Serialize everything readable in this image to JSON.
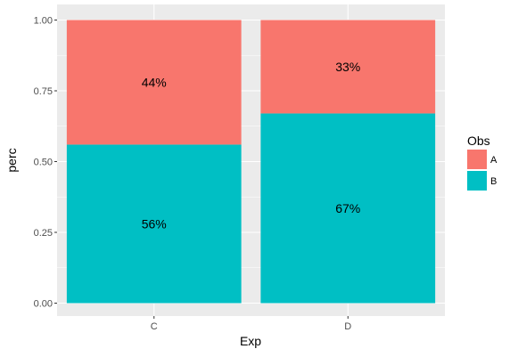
{
  "chart_data": {
    "type": "bar",
    "stacked": true,
    "categories": [
      "C",
      "D"
    ],
    "series": [
      {
        "name": "A",
        "values": [
          0.44,
          0.33
        ],
        "labels": [
          "44%",
          "33%"
        ],
        "color": "#F8766D"
      },
      {
        "name": "B",
        "values": [
          0.56,
          0.67
        ],
        "labels": [
          "56%",
          "67%"
        ],
        "color": "#00BFC4"
      }
    ],
    "xlabel": "Exp",
    "ylabel": "perc",
    "ylim": [
      0,
      1
    ],
    "yticks": [
      "0.00",
      "0.25",
      "0.50",
      "0.75",
      "1.00"
    ],
    "grid": true,
    "legend": {
      "title": "Obs",
      "position": "right"
    }
  },
  "colors": {
    "panel_background": "#EBEBEB",
    "grid": "#FFFFFF"
  }
}
